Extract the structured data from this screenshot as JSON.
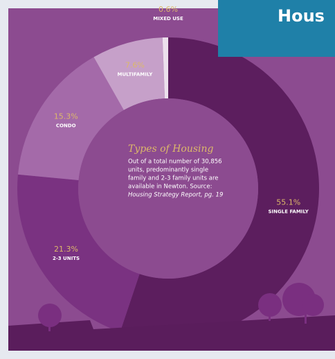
{
  "header": {
    "title": "Hous"
  },
  "chart_data": {
    "type": "pie",
    "donut": true,
    "title": "Types of Housing",
    "description_lines": [
      "Out of a total number of 30,856",
      "units, predominantly single",
      "family and 2-3 family units are",
      "available in Newton. Source:",
      "Housing Strategy Report, pg. 19"
    ],
    "categories": [
      "SINGLE FAMILY",
      "2-3 UNITS",
      "CONDO",
      "MULTIFAMILY",
      "MIXED USE"
    ],
    "values": [
      55.1,
      21.3,
      15.3,
      7.6,
      0.6
    ],
    "value_labels": [
      "55.1%",
      "21.3%",
      "15.3%",
      "7.6%",
      "0.6%"
    ],
    "colors": [
      "#5c1e5e",
      "#7a3281",
      "#a46aa9",
      "#c6a0c9",
      "#ece0ed"
    ]
  }
}
